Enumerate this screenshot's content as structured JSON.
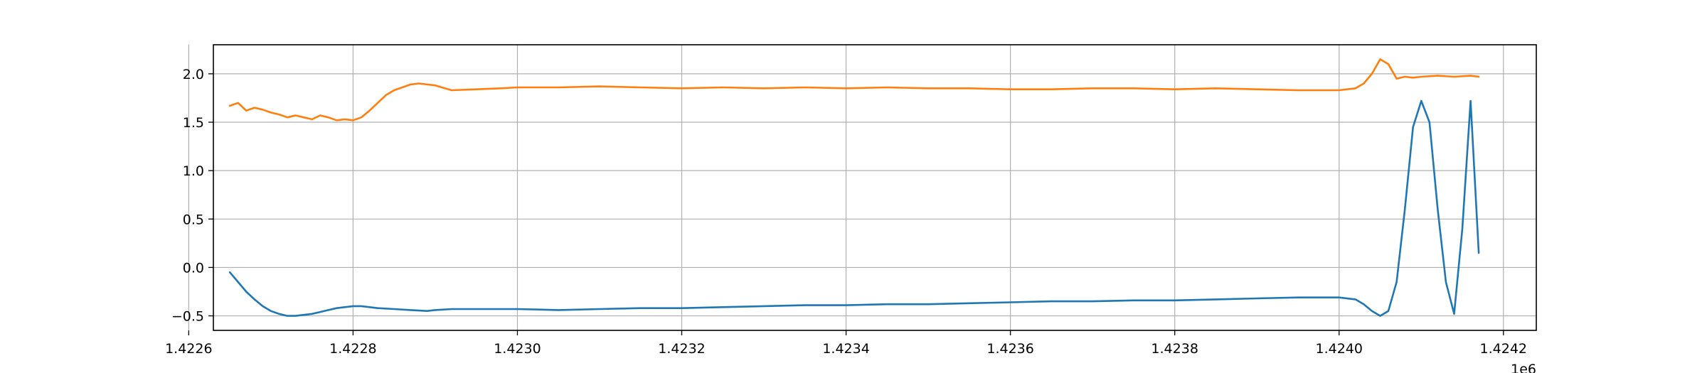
{
  "chart_data": {
    "type": "line",
    "title": "",
    "xlabel": "",
    "ylabel": "",
    "x_offset_label": "1e6",
    "xlim": [
      1.42263,
      1.42424
    ],
    "ylim": [
      -0.65,
      2.3
    ],
    "grid": true,
    "legend": "none",
    "x_ticks": [
      1.4226,
      1.4228,
      1.423,
      1.4232,
      1.4234,
      1.4236,
      1.4238,
      1.424,
      1.4242
    ],
    "x_tick_labels": [
      "1.4226",
      "1.4228",
      "1.4230",
      "1.4232",
      "1.4234",
      "1.4236",
      "1.4238",
      "1.4240",
      "1.4242"
    ],
    "y_ticks": [
      -0.5,
      0.0,
      0.5,
      1.0,
      1.5,
      2.0
    ],
    "y_tick_labels": [
      "−0.5",
      "0.0",
      "0.5",
      "1.0",
      "1.5",
      "2.0"
    ],
    "series": [
      {
        "color": "#1f77b4",
        "x": [
          1.42265,
          1.42266,
          1.42267,
          1.42268,
          1.42269,
          1.4227,
          1.42271,
          1.42272,
          1.42273,
          1.42274,
          1.42275,
          1.42276,
          1.42277,
          1.42278,
          1.42279,
          1.4228,
          1.42281,
          1.42282,
          1.42283,
          1.42285,
          1.42287,
          1.42289,
          1.4229,
          1.42292,
          1.42295,
          1.42298,
          1.423,
          1.42305,
          1.4231,
          1.42315,
          1.4232,
          1.42325,
          1.4233,
          1.42335,
          1.4234,
          1.42345,
          1.4235,
          1.42355,
          1.4236,
          1.42365,
          1.4237,
          1.42375,
          1.4238,
          1.42385,
          1.4239,
          1.42395,
          1.424,
          1.42402,
          1.42403,
          1.42404,
          1.42405,
          1.42406,
          1.42407,
          1.42408,
          1.42409,
          1.4241,
          1.42411,
          1.42412,
          1.42413,
          1.42414,
          1.42415,
          1.42416,
          1.42417
        ],
        "y": [
          -0.05,
          -0.15,
          -0.25,
          -0.33,
          -0.4,
          -0.45,
          -0.48,
          -0.5,
          -0.5,
          -0.49,
          -0.48,
          -0.46,
          -0.44,
          -0.42,
          -0.41,
          -0.4,
          -0.4,
          -0.41,
          -0.42,
          -0.43,
          -0.44,
          -0.45,
          -0.44,
          -0.43,
          -0.43,
          -0.43,
          -0.43,
          -0.44,
          -0.43,
          -0.42,
          -0.42,
          -0.41,
          -0.4,
          -0.39,
          -0.39,
          -0.38,
          -0.38,
          -0.37,
          -0.36,
          -0.35,
          -0.35,
          -0.34,
          -0.34,
          -0.33,
          -0.32,
          -0.31,
          -0.31,
          -0.33,
          -0.38,
          -0.45,
          -0.5,
          -0.45,
          -0.15,
          0.6,
          1.45,
          1.72,
          1.5,
          0.6,
          -0.15,
          -0.48,
          0.4,
          1.72,
          0.15
        ]
      },
      {
        "color": "#ff7f0e",
        "x": [
          1.42265,
          1.42266,
          1.42267,
          1.42268,
          1.42269,
          1.4227,
          1.42271,
          1.42272,
          1.42273,
          1.42274,
          1.42275,
          1.42276,
          1.42277,
          1.42278,
          1.42279,
          1.4228,
          1.42281,
          1.42282,
          1.42283,
          1.42284,
          1.42285,
          1.42286,
          1.42287,
          1.42288,
          1.4229,
          1.42292,
          1.42295,
          1.42298,
          1.423,
          1.42305,
          1.4231,
          1.42315,
          1.4232,
          1.42325,
          1.4233,
          1.42335,
          1.4234,
          1.42345,
          1.4235,
          1.42355,
          1.4236,
          1.42365,
          1.4237,
          1.42375,
          1.4238,
          1.42385,
          1.4239,
          1.42395,
          1.424,
          1.42402,
          1.42403,
          1.42404,
          1.42405,
          1.42406,
          1.42407,
          1.42408,
          1.42409,
          1.4241,
          1.42412,
          1.42414,
          1.42416,
          1.42417
        ],
        "y": [
          1.67,
          1.7,
          1.62,
          1.65,
          1.63,
          1.6,
          1.58,
          1.55,
          1.57,
          1.55,
          1.53,
          1.57,
          1.55,
          1.52,
          1.53,
          1.52,
          1.55,
          1.62,
          1.7,
          1.78,
          1.83,
          1.86,
          1.89,
          1.9,
          1.88,
          1.83,
          1.84,
          1.85,
          1.86,
          1.86,
          1.87,
          1.86,
          1.85,
          1.86,
          1.85,
          1.86,
          1.85,
          1.86,
          1.85,
          1.85,
          1.84,
          1.84,
          1.85,
          1.85,
          1.84,
          1.85,
          1.84,
          1.83,
          1.83,
          1.85,
          1.9,
          2.0,
          2.15,
          2.1,
          1.95,
          1.97,
          1.96,
          1.97,
          1.98,
          1.97,
          1.98,
          1.97
        ]
      }
    ]
  }
}
